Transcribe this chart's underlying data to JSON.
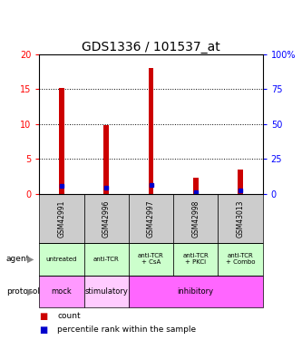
{
  "title": "GDS1336 / 101537_at",
  "samples": [
    "GSM42991",
    "GSM42996",
    "GSM42997",
    "GSM42998",
    "GSM43013"
  ],
  "count_values": [
    15.2,
    9.9,
    18.1,
    2.3,
    3.5
  ],
  "percentile_values": [
    5.7,
    4.4,
    6.2,
    1.1,
    2.3
  ],
  "left_ylim": [
    0,
    20
  ],
  "right_ylim": [
    0,
    100
  ],
  "left_yticks": [
    0,
    5,
    10,
    15,
    20
  ],
  "right_yticks": [
    0,
    25,
    50,
    75,
    100
  ],
  "right_yticklabels": [
    "0",
    "25",
    "50",
    "75",
    "100%"
  ],
  "agent_labels": [
    "untreated",
    "anti-TCR",
    "anti-TCR\n+ CsA",
    "anti-TCR\n+ PKCi",
    "anti-TCR\n+ Combo"
  ],
  "protocol_groups": [
    {
      "label": "mock",
      "span": [
        0,
        1
      ],
      "color": "#ff99ff"
    },
    {
      "label": "stimulatory",
      "span": [
        1,
        2
      ],
      "color": "#ffccff"
    },
    {
      "label": "inhibitory",
      "span": [
        2,
        5
      ],
      "color": "#ff66ff"
    }
  ],
  "agent_color": "#ccffcc",
  "sample_bg_color": "#cccccc",
  "bar_color": "#cc0000",
  "pct_color": "#0000cc",
  "title_fontsize": 10,
  "bar_width": 0.12
}
